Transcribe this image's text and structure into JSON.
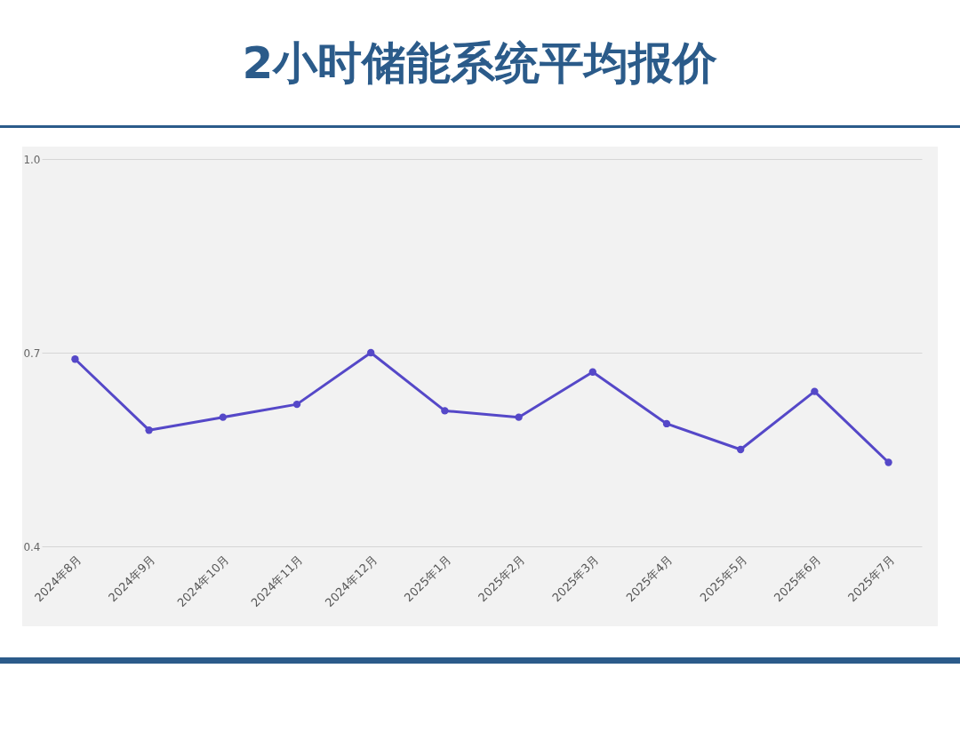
{
  "chart_data": {
    "type": "line",
    "title": "2小时储能系统平均报价",
    "categories": [
      "2024年8月",
      "2024年9月",
      "2024年10月",
      "2024年11月",
      "2024年12月",
      "2025年1月",
      "2025年2月",
      "2025年3月",
      "2025年4月",
      "2025年5月",
      "2025年6月",
      "2025年7月"
    ],
    "series": [
      {
        "color": "#5548c8",
        "values": [
          0.69,
          0.58,
          0.6,
          0.62,
          0.7,
          0.61,
          0.6,
          0.67,
          0.59,
          0.55,
          0.64,
          0.53
        ]
      }
    ],
    "ylim": [
      0.4,
      1.0
    ],
    "yticks": [
      0.4,
      0.7,
      {
        "value": 1.0,
        "label": "1.0"
      }
    ],
    "grid": "y",
    "marker": "circle",
    "line_style": "solid"
  }
}
